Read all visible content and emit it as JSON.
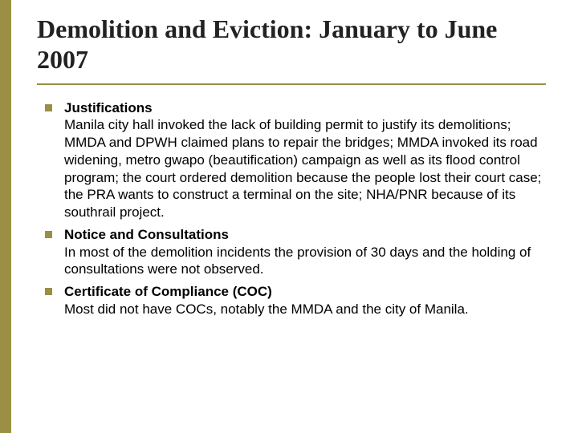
{
  "accent_color": "#9a8f45",
  "title": "Demolition and Eviction: January to June 2007",
  "bullets": [
    {
      "heading": "Justifications",
      "body": "Manila city hall invoked the lack of building permit to justify its demolitions; MMDA and DPWH claimed plans to repair the bridges; MMDA invoked its road widening, metro gwapo (beautification) campaign as well as its flood control program;  the court ordered demolition because the people lost their court case; the PRA wants to construct a terminal on the site; NHA/PNR because of its southrail project."
    },
    {
      "heading": "Notice and Consultations",
      "body": "In most of the demolition incidents the provision of 30 days and the holding of consultations were not observed."
    },
    {
      "heading": "Certificate of Compliance (COC)",
      "body": "Most did not have COCs, notably  the MMDA and the city of Manila."
    }
  ]
}
